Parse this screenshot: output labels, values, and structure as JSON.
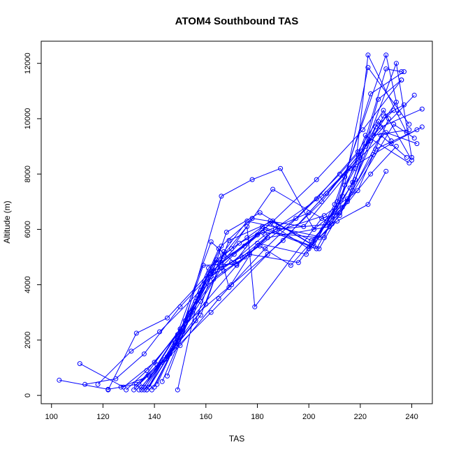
{
  "chart_data": {
    "type": "line",
    "title": "ATOM4 Southbound TAS",
    "xlabel": "TAS",
    "ylabel": "Altitude (m)",
    "xlim": [
      96,
      248
    ],
    "ylim": [
      -300,
      12800
    ],
    "x_ticks": [
      100,
      120,
      140,
      160,
      180,
      200,
      220,
      240
    ],
    "y_ticks": [
      0,
      2000,
      4000,
      6000,
      8000,
      10000,
      12000
    ],
    "series_color": "#0000FF",
    "markers": "open-circle",
    "series": [
      {
        "x": [
          103,
          122,
          133,
          146,
          162,
          184,
          205,
          222,
          234
        ],
        "y": [
          550,
          220,
          400,
          1500,
          3000,
          5100,
          7000,
          9000,
          10600
        ]
      },
      {
        "x": [
          111,
          128,
          140,
          152,
          170,
          190,
          207,
          224,
          241
        ],
        "y": [
          1150,
          300,
          1200,
          2600,
          4000,
          5600,
          7300,
          9200,
          10850
        ]
      },
      {
        "x": [
          113,
          125,
          136,
          150,
          166,
          185,
          203,
          221,
          236
        ],
        "y": [
          400,
          600,
          1500,
          3200,
          4800,
          6200,
          7800,
          9600,
          11400
        ]
      },
      {
        "x": [
          118,
          131,
          142,
          158,
          175,
          195,
          212,
          228,
          244
        ],
        "y": [
          400,
          1600,
          2300,
          3800,
          5000,
          6400,
          8000,
          9700,
          10350
        ]
      },
      {
        "x": [
          122,
          133,
          145,
          161,
          180,
          200,
          216,
          232,
          244
        ],
        "y": [
          200,
          2250,
          2800,
          4400,
          5800,
          6600,
          8200,
          9100,
          9700
        ]
      },
      {
        "x": [
          127,
          138,
          150,
          165,
          183,
          203,
          219,
          229,
          240
        ],
        "y": [
          300,
          700,
          1800,
          3500,
          5300,
          7100,
          8800,
          10300,
          8500
        ]
      },
      {
        "x": [
          129,
          137,
          149,
          172,
          188,
          205,
          220,
          230,
          242
        ],
        "y": [
          200,
          900,
          2200,
          4700,
          6100,
          7200,
          8600,
          9500,
          9100
        ]
      },
      {
        "x": [
          132,
          141,
          154,
          166,
          178,
          198,
          214,
          225,
          239
        ],
        "y": [
          200,
          1100,
          3000,
          5400,
          6400,
          6100,
          7900,
          9400,
          9600
        ]
      },
      {
        "x": [
          133,
          145,
          158,
          169,
          186,
          202,
          218,
          223,
          238
        ],
        "y": [
          300,
          1400,
          2900,
          5600,
          6300,
          5400,
          8200,
          12300,
          9500
        ]
      },
      {
        "x": [
          134,
          143,
          156,
          168,
          181,
          204,
          217,
          227,
          236
        ],
        "y": [
          200,
          1200,
          2700,
          5900,
          6600,
          5300,
          7400,
          10700,
          11400
        ]
      },
      {
        "x": [
          135,
          147,
          160,
          167,
          176,
          206,
          211,
          224,
          237
        ],
        "y": [
          300,
          1700,
          3300,
          5200,
          6300,
          5700,
          7000,
          10900,
          11700
        ]
      },
      {
        "x": [
          136,
          148,
          161,
          170,
          186,
          207,
          213,
          223,
          239
        ],
        "y": [
          200,
          1900,
          4600,
          5300,
          7450,
          6300,
          7200,
          11850,
          9800
        ]
      },
      {
        "x": [
          137,
          146,
          162,
          171,
          182,
          201,
          210,
          230,
          235
        ],
        "y": [
          200,
          1500,
          5550,
          4800,
          6100,
          5400,
          6900,
          12300,
          10200
        ]
      },
      {
        "x": [
          138,
          149,
          159,
          172,
          184,
          208,
          215,
          226,
          233
        ],
        "y": [
          300,
          2000,
          4700,
          4750,
          5700,
          6100,
          7100,
          9700,
          10300
        ]
      },
      {
        "x": [
          139,
          151,
          163,
          174,
          187,
          209,
          214,
          227,
          232
        ],
        "y": [
          200,
          2300,
          4500,
          5000,
          6000,
          6200,
          7600,
          9900,
          9200
        ]
      },
      {
        "x": [
          140,
          152,
          164,
          175,
          185,
          200,
          212,
          228,
          238
        ],
        "y": [
          300,
          2600,
          4800,
          5400,
          6200,
          5300,
          6500,
          9400,
          8600
        ]
      },
      {
        "x": [
          141,
          153,
          165,
          169,
          180,
          199,
          218,
          229,
          237
        ],
        "y": [
          400,
          2800,
          5300,
          3900,
          5500,
          5100,
          7800,
          10100,
          10500
        ]
      },
      {
        "x": [
          143,
          155,
          163,
          167,
          177,
          196,
          216,
          234,
          240
        ],
        "y": [
          500,
          3100,
          4200,
          4500,
          5100,
          4800,
          7500,
          12000,
          8600
        ]
      },
      {
        "x": [
          145,
          156,
          162,
          173,
          183,
          203,
          217,
          230,
          236
        ],
        "y": [
          700,
          3400,
          4400,
          5500,
          6000,
          5300,
          7700,
          11800,
          11700
        ]
      },
      {
        "x": [
          149,
          157,
          164,
          176,
          185,
          201,
          213,
          225,
          231
        ],
        "y": [
          200,
          3600,
          4900,
          5700,
          6300,
          5600,
          6800,
          8700,
          10000
        ]
      },
      {
        "x": [
          135,
          144,
          158,
          166,
          181,
          193,
          210,
          222,
          239
        ],
        "y": [
          200,
          1300,
          3400,
          4600,
          5400,
          4700,
          6500,
          9400,
          8400
        ]
      },
      {
        "x": [
          134,
          150,
          160,
          171,
          182,
          204,
          211,
          223,
          230
        ],
        "y": [
          400,
          2400,
          4100,
          5100,
          5900,
          5700,
          6300,
          6900,
          8100
        ]
      },
      {
        "x": [
          136,
          152,
          166,
          178,
          189,
          202,
          215,
          233,
          241
        ],
        "y": [
          300,
          2700,
          7200,
          7800,
          8200,
          6000,
          7000,
          9800,
          9300
        ]
      },
      {
        "x": [
          137,
          154,
          167,
          176,
          179,
          205,
          212,
          224,
          234
        ],
        "y": [
          200,
          3000,
          5100,
          6100,
          3200,
          6400,
          6600,
          8000,
          9000
        ]
      },
      {
        "x": [
          138,
          148,
          162,
          170,
          183,
          206,
          219,
          226,
          242
        ],
        "y": [
          300,
          1800,
          4300,
          4800,
          5800,
          6500,
          7400,
          8900,
          9600
        ]
      }
    ]
  }
}
